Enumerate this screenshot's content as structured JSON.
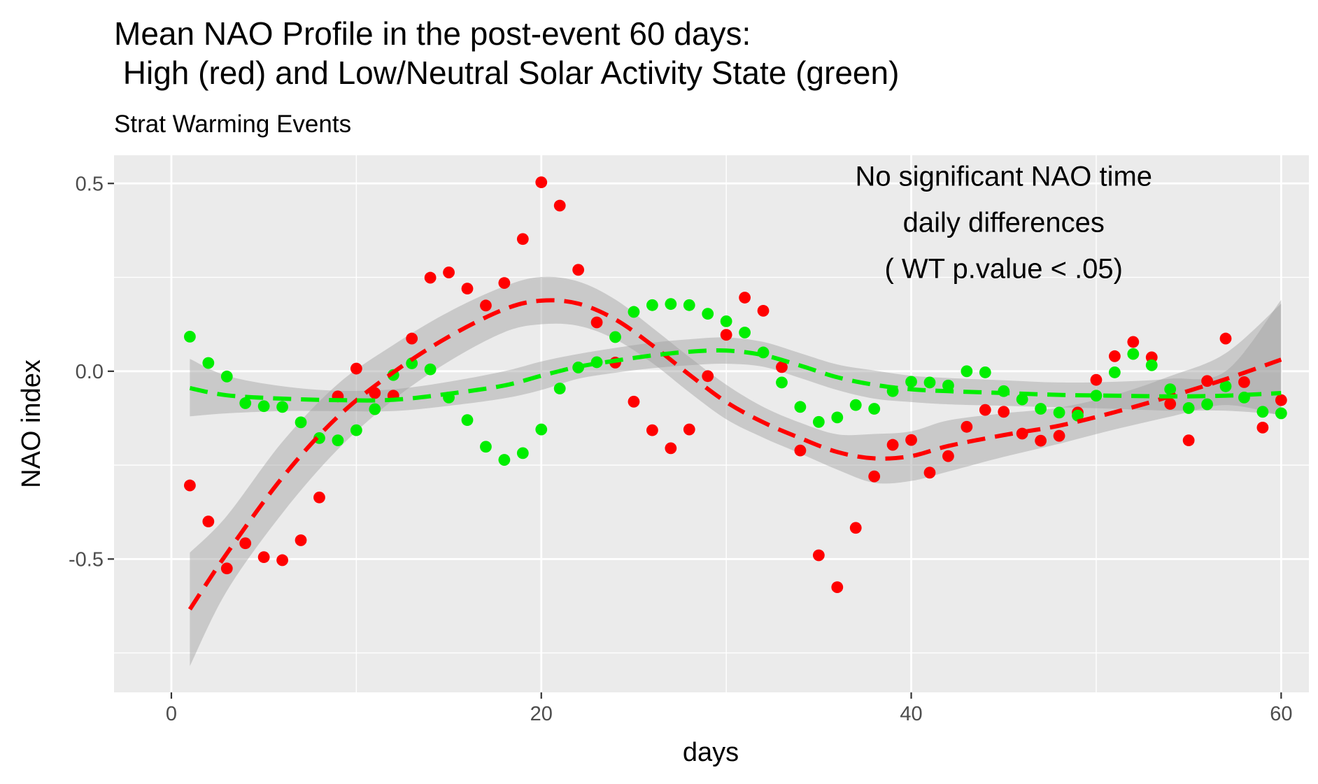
{
  "chart_data": {
    "type": "scatter",
    "title_lines": [
      "Mean NAO Profile in the post-event 60 days:",
      " High (red) and Low/Neutral Solar Activity State (green)"
    ],
    "subtitle": "Strat Warming Events",
    "xlabel": "days",
    "ylabel": "NAO index",
    "xlim": [
      -3.1,
      61.5
    ],
    "ylim": [
      -0.855,
      0.575
    ],
    "x_ticks": [
      0,
      20,
      40,
      60
    ],
    "x_tick_labels": [
      "0",
      "20",
      "40",
      "60"
    ],
    "y_ticks": [
      -0.5,
      0.0,
      0.5
    ],
    "y_tick_labels": [
      "-0.5",
      "0.0",
      "0.5"
    ],
    "grid": true,
    "legend": "none",
    "annotation_lines": [
      "No significant NAO time",
      "daily differences",
      "( WT p.value < .05)"
    ],
    "annotation_x": 45,
    "annotation_y_top": 0.52,
    "series": [
      {
        "color": "#ff0000",
        "x": [
          1,
          2,
          3,
          4,
          5,
          6,
          7,
          8,
          9,
          10,
          11,
          12,
          13,
          14,
          15,
          16,
          17,
          18,
          19,
          20,
          21,
          22,
          23,
          24,
          25,
          26,
          27,
          28,
          29,
          30,
          31,
          32,
          33,
          34,
          35,
          36,
          37,
          38,
          39,
          40,
          41,
          42,
          43,
          44,
          45,
          46,
          47,
          48,
          49,
          50,
          51,
          52,
          53,
          54,
          55,
          56,
          57,
          58,
          59,
          60
        ],
        "values": [
          -0.304,
          -0.4,
          -0.525,
          -0.458,
          -0.495,
          -0.503,
          -0.45,
          -0.336,
          -0.067,
          0.007,
          -0.058,
          -0.065,
          0.087,
          0.249,
          0.263,
          0.22,
          0.175,
          0.235,
          0.352,
          0.503,
          0.441,
          0.27,
          0.13,
          0.023,
          -0.081,
          -0.157,
          -0.205,
          -0.155,
          -0.013,
          0.097,
          0.196,
          0.161,
          0.011,
          -0.211,
          -0.49,
          -0.575,
          -0.417,
          -0.28,
          -0.196,
          -0.183,
          -0.27,
          -0.226,
          -0.148,
          -0.103,
          -0.108,
          -0.166,
          -0.185,
          -0.172,
          -0.11,
          -0.023,
          0.04,
          0.078,
          0.037,
          -0.087,
          -0.184,
          -0.026,
          0.087,
          -0.029,
          -0.15,
          -0.077
        ],
        "smooth_x": [
          1,
          3,
          6,
          9,
          12,
          15,
          18,
          20,
          22,
          24,
          26,
          28,
          30,
          32,
          34,
          36,
          38,
          40,
          42,
          45,
          48,
          51,
          54,
          57,
          60
        ],
        "smooth_y": [
          -0.634,
          -0.485,
          -0.283,
          -0.121,
          -0.003,
          0.092,
          0.165,
          0.188,
          0.18,
          0.138,
          0.069,
          -0.009,
          -0.082,
          -0.136,
          -0.178,
          -0.215,
          -0.232,
          -0.226,
          -0.199,
          -0.17,
          -0.145,
          -0.109,
          -0.067,
          -0.021,
          0.031
        ],
        "band_lower": [
          -0.785,
          -0.585,
          -0.378,
          -0.208,
          -0.076,
          0.026,
          0.104,
          0.125,
          0.121,
          0.085,
          0.022,
          -0.056,
          -0.128,
          -0.177,
          -0.219,
          -0.262,
          -0.297,
          -0.292,
          -0.267,
          -0.228,
          -0.193,
          -0.155,
          -0.121,
          -0.09,
          -0.118
        ],
        "band_upper": [
          -0.483,
          -0.385,
          -0.188,
          -0.034,
          0.07,
          0.158,
          0.226,
          0.251,
          0.239,
          0.191,
          0.116,
          0.038,
          -0.036,
          -0.095,
          -0.137,
          -0.168,
          -0.167,
          -0.16,
          -0.131,
          -0.112,
          -0.097,
          -0.063,
          -0.013,
          0.048,
          0.18
        ]
      },
      {
        "color": "#00ee00",
        "x": [
          1,
          2,
          3,
          4,
          5,
          6,
          7,
          8,
          9,
          10,
          11,
          12,
          13,
          14,
          15,
          16,
          17,
          18,
          19,
          20,
          21,
          22,
          23,
          24,
          25,
          26,
          27,
          28,
          29,
          30,
          31,
          32,
          33,
          34,
          35,
          36,
          37,
          38,
          39,
          40,
          41,
          42,
          43,
          44,
          45,
          46,
          47,
          48,
          49,
          50,
          51,
          52,
          53,
          54,
          55,
          56,
          57,
          58,
          59,
          60
        ],
        "values": [
          0.092,
          0.022,
          -0.014,
          -0.085,
          -0.093,
          -0.095,
          -0.136,
          -0.178,
          -0.184,
          -0.157,
          -0.101,
          -0.01,
          0.021,
          0.005,
          -0.07,
          -0.13,
          -0.201,
          -0.236,
          -0.218,
          -0.155,
          -0.046,
          0.01,
          0.024,
          0.091,
          0.158,
          0.176,
          0.179,
          0.176,
          0.153,
          0.133,
          0.103,
          0.05,
          -0.03,
          -0.095,
          -0.135,
          -0.123,
          -0.09,
          -0.1,
          -0.053,
          -0.028,
          -0.03,
          -0.038,
          0.0,
          -0.003,
          -0.053,
          -0.075,
          -0.1,
          -0.11,
          -0.118,
          -0.065,
          -0.003,
          0.046,
          0.016,
          -0.048,
          -0.098,
          -0.088,
          -0.04,
          -0.07,
          -0.108,
          -0.112
        ],
        "smooth_x": [
          1,
          3,
          6,
          9,
          12,
          15,
          18,
          20,
          22,
          24,
          26,
          28,
          30,
          32,
          34,
          36,
          38,
          40,
          42,
          45,
          48,
          51,
          54,
          57,
          60
        ],
        "smooth_y": [
          -0.045,
          -0.064,
          -0.073,
          -0.077,
          -0.076,
          -0.06,
          -0.038,
          -0.012,
          0.012,
          0.028,
          0.042,
          0.052,
          0.055,
          0.043,
          0.015,
          -0.016,
          -0.036,
          -0.048,
          -0.053,
          -0.058,
          -0.063,
          -0.065,
          -0.067,
          -0.065,
          -0.058
        ],
        "band_lower": [
          -0.12,
          -0.112,
          -0.106,
          -0.106,
          -0.106,
          -0.092,
          -0.072,
          -0.05,
          -0.02,
          -0.004,
          0.008,
          0.016,
          0.02,
          0.012,
          -0.018,
          -0.05,
          -0.073,
          -0.082,
          -0.088,
          -0.092,
          -0.096,
          -0.1,
          -0.105,
          -0.105,
          -0.115
        ],
        "band_upper": [
          0.033,
          -0.012,
          -0.04,
          -0.052,
          -0.048,
          -0.028,
          0.0,
          0.026,
          0.046,
          0.062,
          0.076,
          0.085,
          0.09,
          0.078,
          0.048,
          0.018,
          0.002,
          -0.012,
          -0.018,
          -0.024,
          -0.03,
          -0.028,
          -0.02,
          0.0,
          0.19
        ]
      }
    ]
  },
  "colors": {
    "panel_background": "#ebebeb",
    "grid_major": "#ffffff",
    "confidence_band": "#a0a0a0",
    "tick_text": "#4d4d4d",
    "high_solar_series": "#ff0000",
    "low_neutral_series": "#00ee00"
  }
}
